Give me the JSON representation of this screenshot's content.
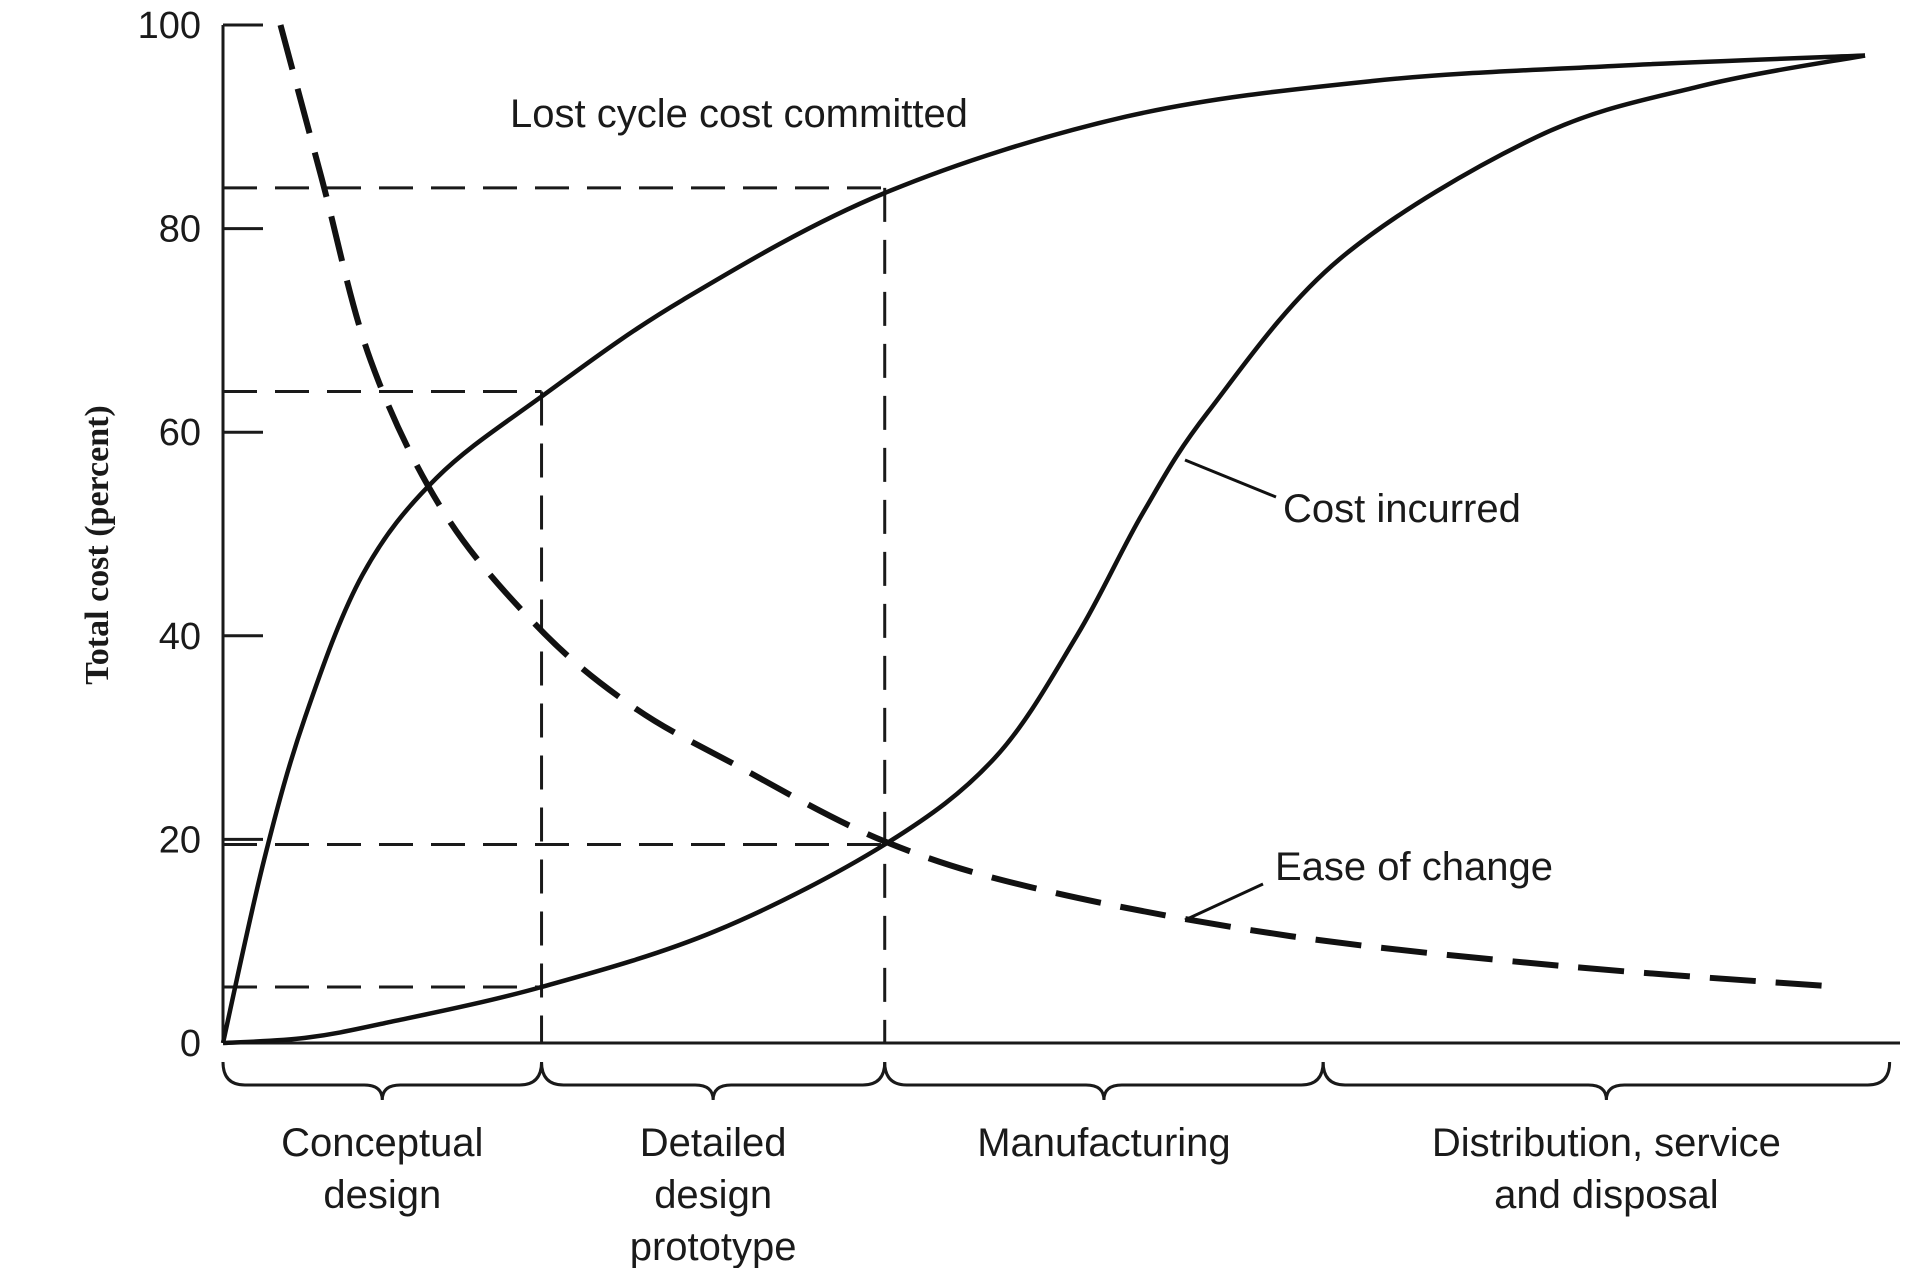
{
  "chart_data": {
    "type": "line",
    "title": "",
    "xlabel": "",
    "ylabel": "Total cost (percent)",
    "ylim": [
      0,
      100
    ],
    "yticks": [
      "0",
      "20",
      "40",
      "60",
      "80",
      "100"
    ],
    "xlim": [
      0,
      100
    ],
    "grid": false,
    "legend": "none",
    "series": [
      {
        "name": "Lost cycle cost committed",
        "style": "solid",
        "x": [
          0,
          2.5,
          5,
          8.5,
          13,
          19.4,
          28,
          40.3,
          55,
          70,
          85,
          100
        ],
        "values": [
          0,
          18,
          32,
          46,
          55.5,
          63.5,
          73,
          83.5,
          91,
          94.5,
          96,
          97
        ]
      },
      {
        "name": "Cost incurred",
        "style": "solid",
        "x": [
          0,
          5,
          10,
          19.4,
          30,
          40.3,
          47,
          52,
          56,
          60,
          68,
          80,
          90,
          100
        ],
        "values": [
          0,
          0.5,
          2,
          5.5,
          11,
          19.5,
          28,
          40,
          52,
          62,
          77,
          89,
          94,
          97
        ]
      },
      {
        "name": "Ease of change",
        "style": "dashed",
        "x": [
          3.5,
          6,
          9,
          13.5,
          19.4,
          25,
          31,
          40.3,
          50,
          65,
          82,
          98.5
        ],
        "values": [
          100,
          85,
          67,
          52,
          40.5,
          33,
          27.5,
          19.8,
          15,
          10.5,
          7.5,
          5.5
        ]
      }
    ],
    "reference_lines": [
      {
        "y": 84,
        "x": 40.3
      },
      {
        "y": 64,
        "x": 19.4
      },
      {
        "y": 19.5,
        "x": 40.3
      },
      {
        "y": 5.5,
        "x": 19.4
      }
    ],
    "phases": [
      {
        "label": [
          "Conceptual",
          "design"
        ],
        "start": 0,
        "end": 19.4
      },
      {
        "label": [
          "Detailed",
          "design",
          "prototype"
        ],
        "start": 19.4,
        "end": 40.3
      },
      {
        "label": [
          "Manufacturing"
        ],
        "start": 40.3,
        "end": 67
      },
      {
        "label": [
          "Distribution, service",
          "and disposal"
        ],
        "start": 67,
        "end": 101.5
      }
    ],
    "annotations": [
      {
        "text": "Lost cycle cost committed",
        "series": 0
      },
      {
        "text": "Cost incurred",
        "series": 1
      },
      {
        "text": "Ease of change",
        "series": 2
      }
    ]
  }
}
